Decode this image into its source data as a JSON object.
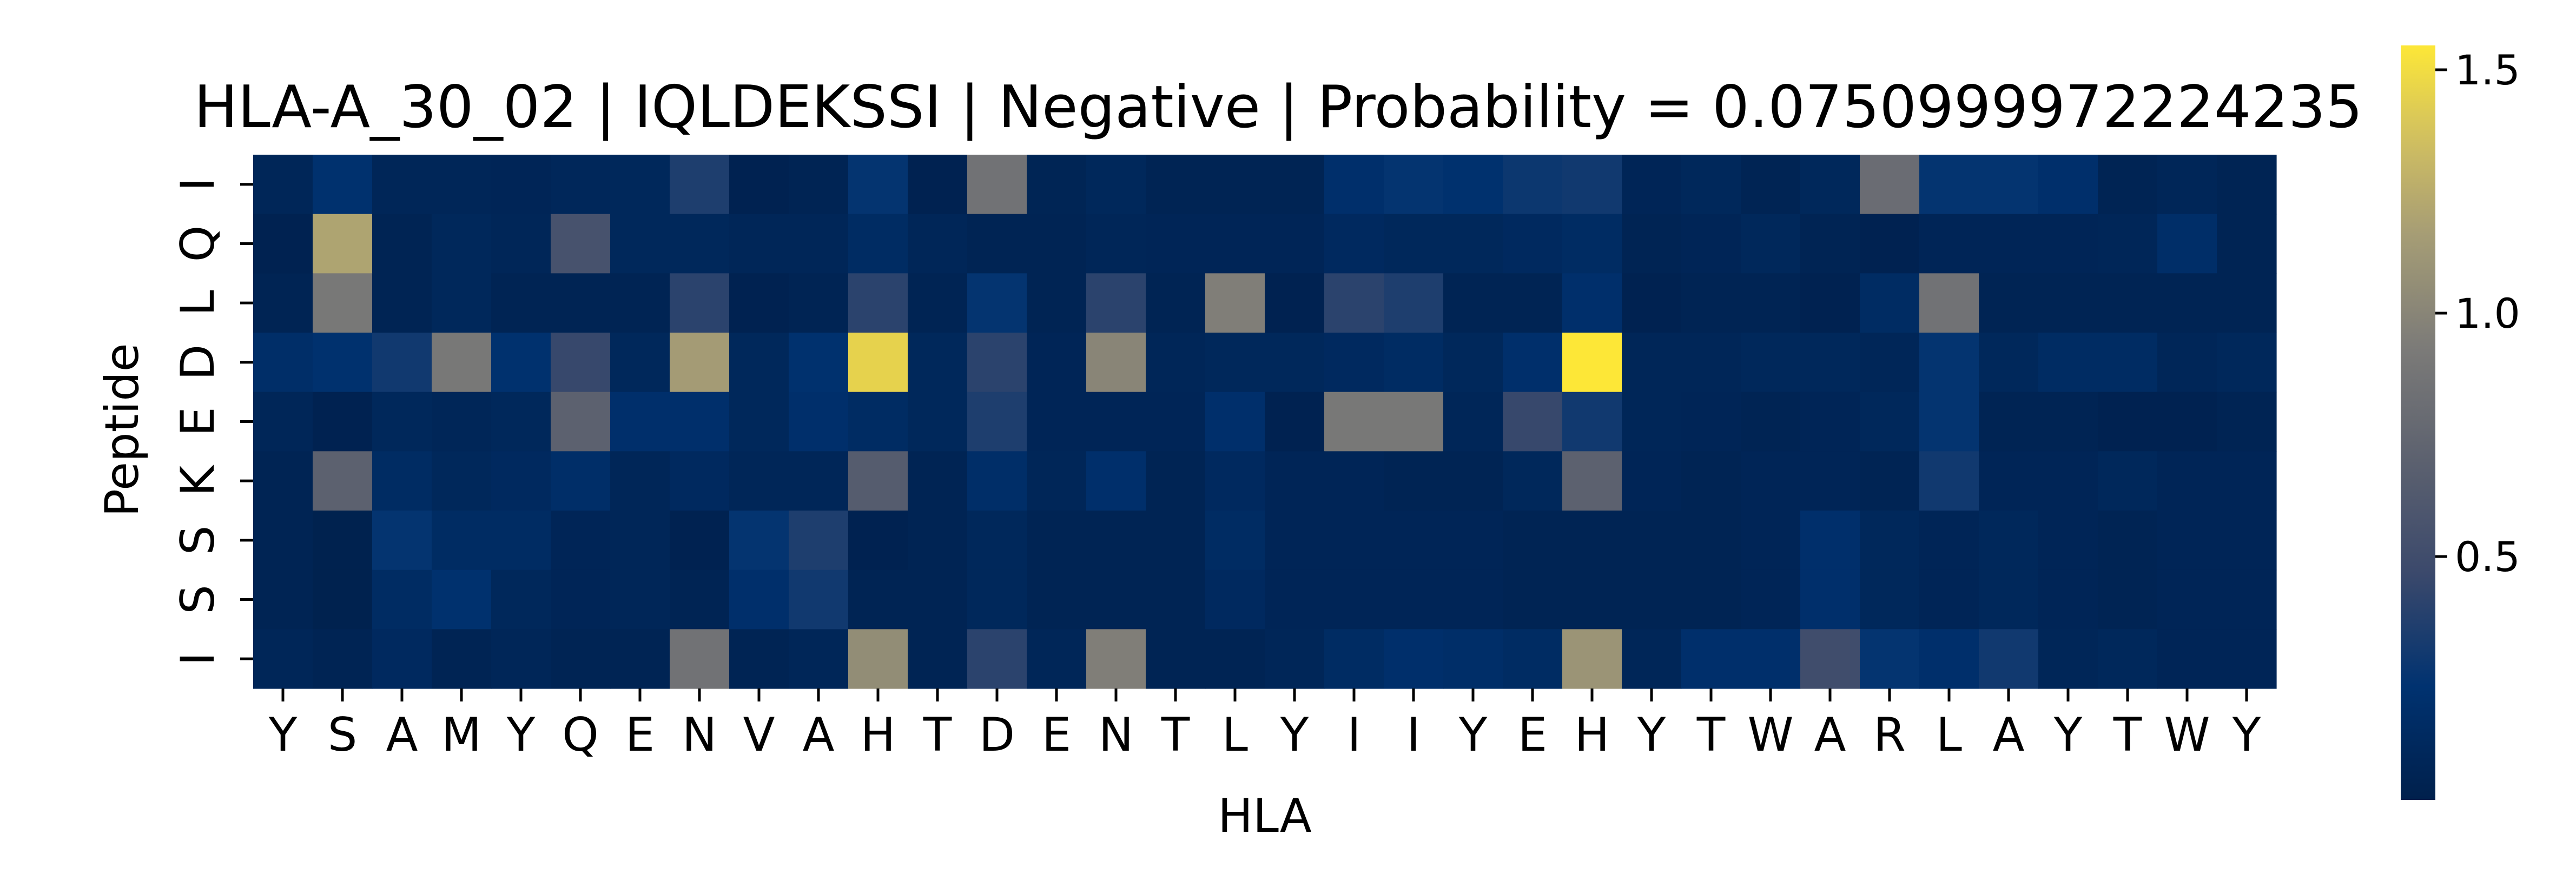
{
  "chart_data": {
    "type": "heatmap",
    "title": "HLA-A_30_02 | IQLDEKSSI | Negative | Probability = 0.0750999972224235",
    "xlabel": "HLA",
    "ylabel": "Peptide",
    "x_categories": [
      "Y",
      "S",
      "A",
      "M",
      "Y",
      "Q",
      "E",
      "N",
      "V",
      "A",
      "H",
      "T",
      "D",
      "E",
      "N",
      "T",
      "L",
      "Y",
      "I",
      "I",
      "Y",
      "E",
      "H",
      "Y",
      "T",
      "W",
      "A",
      "R",
      "L",
      "A",
      "Y",
      "T",
      "W",
      "Y"
    ],
    "y_categories": [
      "I",
      "Q",
      "L",
      "D",
      "E",
      "K",
      "S",
      "S",
      "I"
    ],
    "values": [
      [
        0.08,
        0.22,
        0.08,
        0.08,
        0.07,
        0.09,
        0.1,
        0.35,
        0.03,
        0.05,
        0.25,
        0.03,
        0.85,
        0.06,
        0.1,
        0.05,
        0.05,
        0.05,
        0.2,
        0.25,
        0.22,
        0.28,
        0.3,
        0.07,
        0.1,
        0.05,
        0.1,
        0.8,
        0.25,
        0.25,
        0.2,
        0.05,
        0.08,
        0.05
      ],
      [
        0.03,
        1.2,
        0.05,
        0.1,
        0.08,
        0.55,
        0.1,
        0.1,
        0.08,
        0.08,
        0.15,
        0.08,
        0.05,
        0.05,
        0.08,
        0.07,
        0.07,
        0.07,
        0.12,
        0.1,
        0.1,
        0.12,
        0.15,
        0.05,
        0.07,
        0.1,
        0.05,
        0.03,
        0.07,
        0.07,
        0.07,
        0.08,
        0.18,
        0.05
      ],
      [
        0.05,
        0.9,
        0.05,
        0.1,
        0.05,
        0.05,
        0.05,
        0.4,
        0.03,
        0.05,
        0.4,
        0.05,
        0.25,
        0.05,
        0.4,
        0.05,
        0.95,
        0.03,
        0.4,
        0.35,
        0.05,
        0.05,
        0.2,
        0.03,
        0.05,
        0.05,
        0.03,
        0.15,
        0.85,
        0.05,
        0.05,
        0.05,
        0.05,
        0.05
      ],
      [
        0.18,
        0.22,
        0.3,
        0.9,
        0.22,
        0.45,
        0.1,
        1.15,
        0.1,
        0.22,
        1.45,
        0.1,
        0.4,
        0.07,
        1.0,
        0.08,
        0.1,
        0.1,
        0.12,
        0.15,
        0.1,
        0.2,
        1.55,
        0.08,
        0.08,
        0.1,
        0.1,
        0.08,
        0.25,
        0.1,
        0.15,
        0.15,
        0.08,
        0.1
      ],
      [
        0.08,
        0.03,
        0.1,
        0.08,
        0.1,
        0.7,
        0.2,
        0.2,
        0.1,
        0.2,
        0.15,
        0.1,
        0.35,
        0.07,
        0.07,
        0.07,
        0.2,
        0.03,
        0.9,
        0.9,
        0.08,
        0.45,
        0.3,
        0.08,
        0.07,
        0.05,
        0.07,
        0.1,
        0.25,
        0.05,
        0.05,
        0.03,
        0.03,
        0.05
      ],
      [
        0.05,
        0.7,
        0.15,
        0.1,
        0.12,
        0.18,
        0.08,
        0.12,
        0.08,
        0.08,
        0.65,
        0.05,
        0.18,
        0.08,
        0.2,
        0.05,
        0.12,
        0.07,
        0.07,
        0.05,
        0.05,
        0.1,
        0.7,
        0.07,
        0.05,
        0.07,
        0.07,
        0.05,
        0.3,
        0.07,
        0.07,
        0.1,
        0.07,
        0.07
      ],
      [
        0.05,
        0.02,
        0.25,
        0.15,
        0.15,
        0.07,
        0.08,
        0.03,
        0.25,
        0.35,
        0.03,
        0.05,
        0.1,
        0.05,
        0.05,
        0.05,
        0.15,
        0.07,
        0.07,
        0.07,
        0.07,
        0.05,
        0.05,
        0.05,
        0.05,
        0.07,
        0.2,
        0.1,
        0.07,
        0.1,
        0.07,
        0.05,
        0.07,
        0.07
      ],
      [
        0.05,
        0.02,
        0.15,
        0.22,
        0.1,
        0.07,
        0.08,
        0.05,
        0.2,
        0.3,
        0.05,
        0.05,
        0.1,
        0.05,
        0.05,
        0.05,
        0.12,
        0.07,
        0.07,
        0.07,
        0.07,
        0.05,
        0.05,
        0.05,
        0.05,
        0.07,
        0.2,
        0.1,
        0.07,
        0.1,
        0.07,
        0.05,
        0.07,
        0.07
      ],
      [
        0.08,
        0.05,
        0.12,
        0.05,
        0.08,
        0.05,
        0.05,
        0.85,
        0.05,
        0.08,
        1.05,
        0.05,
        0.4,
        0.08,
        0.95,
        0.05,
        0.05,
        0.08,
        0.15,
        0.2,
        0.18,
        0.15,
        1.1,
        0.08,
        0.2,
        0.2,
        0.5,
        0.25,
        0.2,
        0.3,
        0.08,
        0.1,
        0.07,
        0.07
      ]
    ],
    "colorbar": {
      "colormap": "cividis",
      "vmin": 0.0,
      "vmax": 1.55,
      "ticks": [
        0.5,
        1.0,
        1.5
      ],
      "tick_labels": [
        "0.5",
        "1.0",
        "1.5"
      ]
    },
    "grid": false
  }
}
